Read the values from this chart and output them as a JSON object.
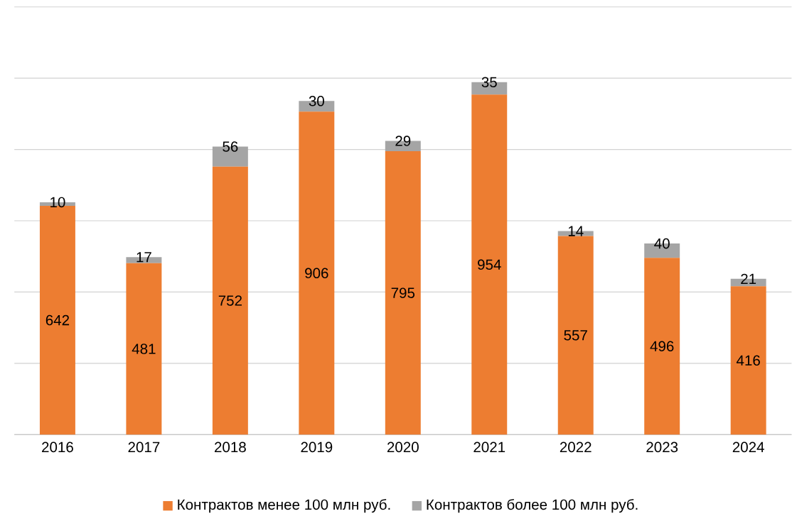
{
  "chart_data": {
    "type": "bar",
    "stacked": true,
    "categories": [
      "2016",
      "2017",
      "2018",
      "2019",
      "2020",
      "2021",
      "2022",
      "2023",
      "2024"
    ],
    "series": [
      {
        "name": "Контрактов менее 100 млн руб.",
        "color": "#ed7d31",
        "values": [
          642,
          481,
          752,
          906,
          795,
          954,
          557,
          496,
          416
        ]
      },
      {
        "name": "Контрактов более 100 млн руб.",
        "color": "#a5a5a5",
        "values": [
          10,
          17,
          56,
          30,
          29,
          35,
          14,
          40,
          21
        ]
      }
    ],
    "ylim": [
      0,
      1200
    ],
    "yticks": [
      {
        "value": 0,
        "label": null
      },
      {
        "value": 200,
        "label": null
      },
      {
        "value": 400,
        "label": null
      },
      {
        "value": 600,
        "label": null
      },
      {
        "value": 800,
        "label": null
      },
      {
        "value": 1000,
        "label": null
      },
      {
        "value": 1200,
        "label": null
      }
    ],
    "tick_labels": "x",
    "grid": "y",
    "legend": "bottom",
    "data_labels": true
  }
}
